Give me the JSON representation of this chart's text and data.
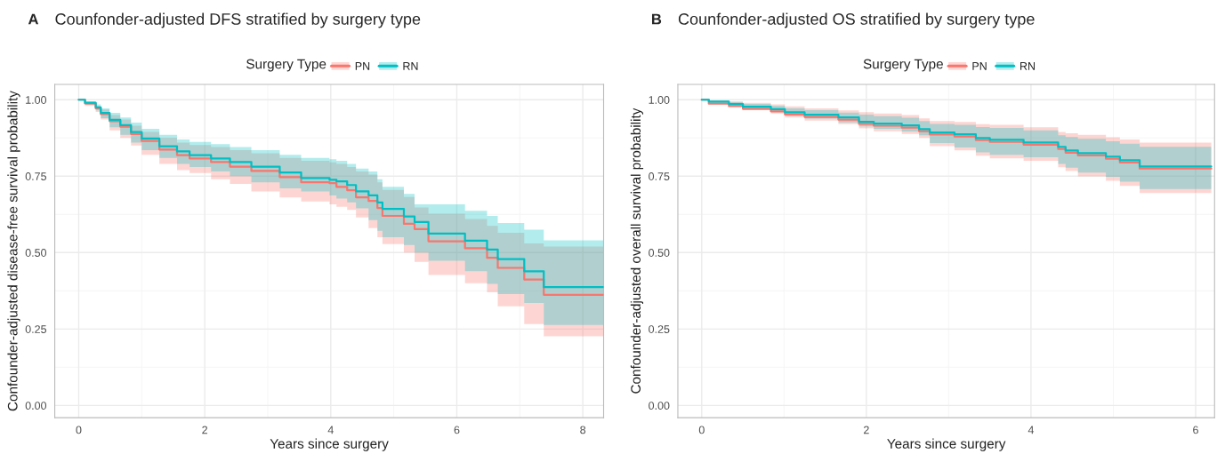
{
  "chart_data": [
    {
      "type": "step",
      "title": "Counfonder-adjusted DFS stratified by surgery type",
      "annotations": [
        "A"
      ],
      "xlabel": "Years since surgery",
      "ylabel": "Confounder-adjusted disease-free survival probability",
      "legend_title": "Surgery Type",
      "legend": "top",
      "grid": true,
      "x": [
        0,
        0.1,
        0.27,
        0.35,
        0.49,
        0.66,
        0.83,
        1.0,
        1.28,
        1.56,
        1.76,
        2.1,
        2.4,
        2.74,
        3.19,
        3.53,
        3.98,
        4.09,
        4.26,
        4.4,
        4.6,
        4.74,
        4.82,
        5.16,
        5.33,
        5.55,
        6.13,
        6.48,
        6.65,
        7.07,
        7.38,
        8.33
      ],
      "series": [
        {
          "name": "PN",
          "color": "#f8766d",
          "values": [
            1.0,
            0.988,
            0.972,
            0.953,
            0.93,
            0.912,
            0.888,
            0.865,
            0.837,
            0.819,
            0.808,
            0.796,
            0.781,
            0.767,
            0.747,
            0.73,
            0.727,
            0.715,
            0.704,
            0.681,
            0.669,
            0.646,
            0.62,
            0.594,
            0.577,
            0.537,
            0.514,
            0.483,
            0.45,
            0.412,
            0.362,
            0.362
          ],
          "lower": [
            1.0,
            0.98,
            0.96,
            0.935,
            0.9,
            0.875,
            0.85,
            0.82,
            0.79,
            0.77,
            0.76,
            0.74,
            0.725,
            0.7,
            0.68,
            0.667,
            0.658,
            0.65,
            0.64,
            0.615,
            0.58,
            0.55,
            0.528,
            0.5,
            0.47,
            0.427,
            0.4,
            0.37,
            0.324,
            0.266,
            0.226,
            0.226
          ],
          "upper": [
            1.0,
            0.993,
            0.98,
            0.968,
            0.95,
            0.935,
            0.915,
            0.895,
            0.875,
            0.86,
            0.852,
            0.845,
            0.835,
            0.825,
            0.81,
            0.8,
            0.795,
            0.79,
            0.78,
            0.765,
            0.755,
            0.73,
            0.705,
            0.682,
            0.648,
            0.627,
            0.61,
            0.587,
            0.565,
            0.53,
            0.52,
            0.52
          ]
        },
        {
          "name": "RN",
          "color": "#00bfc4",
          "values": [
            1.0,
            0.99,
            0.975,
            0.957,
            0.934,
            0.917,
            0.894,
            0.873,
            0.848,
            0.831,
            0.819,
            0.808,
            0.796,
            0.781,
            0.762,
            0.744,
            0.738,
            0.733,
            0.721,
            0.7,
            0.687,
            0.664,
            0.643,
            0.618,
            0.6,
            0.562,
            0.539,
            0.51,
            0.479,
            0.439,
            0.387,
            0.387
          ],
          "lower": [
            1.0,
            0.983,
            0.965,
            0.94,
            0.91,
            0.885,
            0.86,
            0.835,
            0.81,
            0.79,
            0.78,
            0.765,
            0.75,
            0.73,
            0.71,
            0.7,
            0.687,
            0.677,
            0.664,
            0.645,
            0.606,
            0.571,
            0.55,
            0.525,
            0.5,
            0.473,
            0.439,
            0.398,
            0.364,
            0.335,
            0.263,
            0.263
          ],
          "upper": [
            1.0,
            0.995,
            0.985,
            0.972,
            0.957,
            0.942,
            0.925,
            0.905,
            0.885,
            0.87,
            0.862,
            0.855,
            0.845,
            0.835,
            0.82,
            0.81,
            0.805,
            0.8,
            0.79,
            0.775,
            0.765,
            0.74,
            0.715,
            0.692,
            0.658,
            0.658,
            0.637,
            0.62,
            0.597,
            0.575,
            0.54,
            0.54
          ]
        }
      ],
      "xlim": [
        -0.38,
        8.33
      ],
      "xticks": [
        0,
        2,
        4,
        6,
        8
      ],
      "ylim": [
        -0.04,
        1.05
      ],
      "yticks": [
        {
          "value": 0,
          "label": "0.00"
        },
        {
          "value": 0.25,
          "label": "0.25"
        },
        {
          "value": 0.5,
          "label": "0.50"
        },
        {
          "value": 0.75,
          "label": "0.75"
        },
        {
          "value": 1,
          "label": "1.00"
        }
      ]
    },
    {
      "type": "step",
      "title": "Counfonder-adjusted OS stratified by surgery type",
      "annotations": [
        "B"
      ],
      "xlabel": "Years since surgery",
      "ylabel": "Confounder-adjusted overall survival probability",
      "legend_title": "Surgery Type",
      "legend": "top",
      "grid": true,
      "x": [
        0,
        0.086,
        0.33,
        0.5,
        0.84,
        1.01,
        1.25,
        1.66,
        1.91,
        2.09,
        2.43,
        2.64,
        2.77,
        3.07,
        3.33,
        3.5,
        3.91,
        4.33,
        4.42,
        4.57,
        4.91,
        5.08,
        5.32,
        6.19
      ],
      "series": [
        {
          "name": "PN",
          "color": "#f8766d",
          "values": [
            1.0,
            0.987,
            0.979,
            0.97,
            0.962,
            0.952,
            0.944,
            0.935,
            0.921,
            0.915,
            0.909,
            0.897,
            0.886,
            0.88,
            0.868,
            0.862,
            0.853,
            0.839,
            0.827,
            0.818,
            0.807,
            0.795,
            0.775,
            0.775
          ],
          "lower": [
            1.0,
            0.988,
            0.98,
            0.968,
            0.955,
            0.942,
            0.932,
            0.92,
            0.906,
            0.897,
            0.888,
            0.875,
            0.848,
            0.834,
            0.817,
            0.808,
            0.8,
            0.779,
            0.767,
            0.749,
            0.735,
            0.718,
            0.695,
            0.695
          ],
          "upper": [
            1.0,
            0.998,
            0.995,
            0.99,
            0.985,
            0.978,
            0.972,
            0.965,
            0.959,
            0.955,
            0.95,
            0.939,
            0.93,
            0.927,
            0.92,
            0.918,
            0.91,
            0.895,
            0.89,
            0.885,
            0.877,
            0.87,
            0.86,
            0.86
          ]
        },
        {
          "name": "RN",
          "color": "#00bfc4",
          "values": [
            1.0,
            0.994,
            0.986,
            0.977,
            0.969,
            0.959,
            0.951,
            0.942,
            0.928,
            0.922,
            0.916,
            0.904,
            0.893,
            0.887,
            0.875,
            0.869,
            0.86,
            0.846,
            0.834,
            0.825,
            0.814,
            0.802,
            0.782,
            0.782
          ],
          "lower": [
            1.0,
            0.99,
            0.983,
            0.972,
            0.96,
            0.948,
            0.938,
            0.926,
            0.913,
            0.905,
            0.896,
            0.884,
            0.858,
            0.844,
            0.828,
            0.82,
            0.812,
            0.79,
            0.778,
            0.762,
            0.748,
            0.732,
            0.708,
            0.708
          ],
          "upper": [
            1.0,
            0.997,
            0.992,
            0.986,
            0.98,
            0.972,
            0.966,
            0.958,
            0.951,
            0.946,
            0.941,
            0.93,
            0.921,
            0.918,
            0.911,
            0.908,
            0.9,
            0.884,
            0.878,
            0.872,
            0.864,
            0.856,
            0.846,
            0.846
          ]
        }
      ],
      "xlim": [
        -0.29,
        6.23
      ],
      "xticks": [
        0,
        2,
        4,
        6
      ],
      "ylim": [
        -0.04,
        1.05
      ],
      "yticks": [
        {
          "value": 0,
          "label": "0.00"
        },
        {
          "value": 0.25,
          "label": "0.25"
        },
        {
          "value": 0.5,
          "label": "0.50"
        },
        {
          "value": 0.75,
          "label": "0.75"
        },
        {
          "value": 1,
          "label": "1.00"
        }
      ]
    }
  ]
}
